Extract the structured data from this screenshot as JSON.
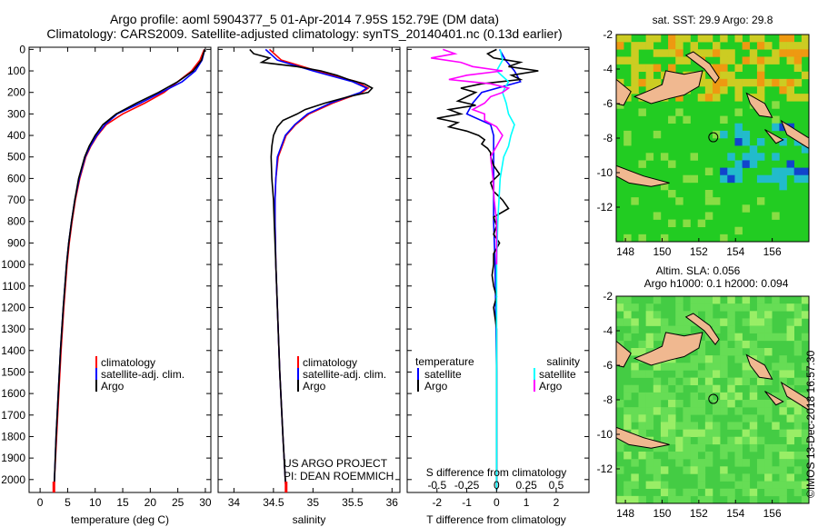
{
  "header": {
    "line1": "Argo profile: aoml 5904377_5 01-Apr-2014 7.95S 152.79E (DM data)",
    "line2": "Climatology: CARS2009. Satellite-adjusted climatology: synTS_20140401.nc (0.13d earlier)"
  },
  "colors": {
    "climatology": "#ff0000",
    "satellite": "#0000ff",
    "argo": "#000000",
    "satellite_s": "#00ffff",
    "argo_s": "#ff00ff",
    "land": "#f0b890",
    "sst_sea": "#22cc22",
    "sla_sea": "#44cc44"
  },
  "depth_axis": {
    "ticks": [
      "0",
      "100",
      "200",
      "300",
      "400",
      "500",
      "600",
      "700",
      "800",
      "900",
      "1000",
      "1100",
      "1200",
      "1300",
      "1400",
      "1500",
      "1600",
      "1700",
      "1800",
      "1900",
      "2000"
    ]
  },
  "chart_data": [
    {
      "type": "line",
      "panel": "temperature",
      "xlabel": "temperature (deg C)",
      "xlim": [
        -2,
        31
      ],
      "ylim": [
        2060,
        -10
      ],
      "xticks": [
        "0",
        "5",
        "10",
        "15",
        "20",
        "25",
        "30"
      ],
      "legend": [
        "climatology",
        "satellite-adj. clim.",
        "Argo"
      ],
      "series": [
        {
          "name": "climatology",
          "depth": [
            0,
            50,
            100,
            150,
            200,
            250,
            300,
            350,
            400,
            450,
            500,
            600,
            700,
            800,
            900,
            1000,
            1200,
            1400,
            1600,
            1800,
            2000,
            2050
          ],
          "values": [
            29.8,
            29.0,
            27.5,
            25.0,
            22.5,
            19.0,
            15.0,
            12.0,
            10.4,
            9.2,
            8.3,
            7.2,
            6.4,
            5.8,
            5.3,
            4.9,
            4.3,
            3.8,
            3.4,
            3.0,
            2.6,
            2.5
          ]
        },
        {
          "name": "satellite-adj. clim.",
          "depth": [
            0,
            50,
            100,
            150,
            200,
            250,
            300,
            350,
            400,
            450,
            500,
            600,
            700,
            800,
            900,
            1000,
            1200,
            1400,
            1600,
            1800,
            2000,
            2050
          ],
          "values": [
            29.9,
            29.4,
            28.2,
            25.8,
            22.0,
            18.2,
            14.0,
            11.8,
            10.3,
            9.1,
            8.2,
            7.1,
            6.3,
            5.7,
            5.2,
            4.8,
            4.2,
            3.7,
            3.3,
            2.9,
            2.6,
            2.5
          ]
        },
        {
          "name": "Argo",
          "depth": [
            0,
            50,
            100,
            150,
            200,
            250,
            300,
            350,
            400,
            450,
            500,
            600,
            700,
            800,
            900,
            1000,
            1200,
            1400,
            1600,
            1800,
            2000,
            2050
          ],
          "values": [
            29.9,
            29.3,
            27.8,
            25.0,
            21.5,
            17.5,
            13.8,
            11.4,
            10.0,
            8.9,
            8.1,
            7.0,
            6.3,
            5.7,
            5.2,
            4.8,
            4.2,
            3.7,
            3.3,
            2.9,
            2.6,
            2.5
          ]
        }
      ]
    },
    {
      "type": "line",
      "panel": "salinity",
      "xlabel": "salinity",
      "xlim": [
        33.8,
        36.1
      ],
      "ylim": [
        2060,
        -10
      ],
      "xticks": [
        "34",
        "34.5",
        "35",
        "35.5",
        "36"
      ],
      "legend": [
        "climatology",
        "satellite-adj. clim.",
        "Argo"
      ],
      "annotation": [
        "US ARGO PROJECT",
        "PI: DEAN ROEMMICH"
      ],
      "series": [
        {
          "name": "climatology",
          "depth": [
            0,
            50,
            100,
            150,
            180,
            200,
            250,
            300,
            350,
            400,
            500,
            600,
            700,
            800,
            1000,
            1200,
            1500,
            1800,
            2000,
            2050
          ],
          "values": [
            34.45,
            34.6,
            35.05,
            35.55,
            35.7,
            35.62,
            35.25,
            34.95,
            34.78,
            34.66,
            34.56,
            34.53,
            34.52,
            34.52,
            34.53,
            34.55,
            34.58,
            34.62,
            34.65,
            34.66
          ]
        },
        {
          "name": "satellite-adj. clim.",
          "depth": [
            0,
            50,
            100,
            150,
            180,
            200,
            250,
            300,
            350,
            400,
            500,
            600,
            700,
            800,
            1000,
            1200,
            1500,
            1800,
            2000,
            2050
          ],
          "values": [
            34.4,
            34.55,
            35.0,
            35.5,
            35.68,
            35.6,
            35.22,
            34.93,
            34.77,
            34.65,
            34.55,
            34.53,
            34.52,
            34.52,
            34.53,
            34.55,
            34.58,
            34.62,
            34.65,
            34.66
          ]
        },
        {
          "name": "Argo",
          "depth": [
            0,
            20,
            40,
            60,
            80,
            100,
            120,
            140,
            160,
            180,
            200,
            220,
            250,
            280,
            300,
            330,
            360,
            400,
            450,
            500,
            600,
            700,
            800,
            1000,
            1200,
            1500,
            1800,
            2000,
            2050
          ],
          "values": [
            34.2,
            34.25,
            34.45,
            34.35,
            34.8,
            35.1,
            35.3,
            35.45,
            35.65,
            35.75,
            35.7,
            35.45,
            35.15,
            34.9,
            34.8,
            34.62,
            34.55,
            34.5,
            34.48,
            34.47,
            34.48,
            34.5,
            34.51,
            34.53,
            34.55,
            34.58,
            34.62,
            34.65,
            34.66
          ]
        }
      ]
    },
    {
      "type": "line",
      "panel": "differences",
      "xlabel": "T difference from climatology",
      "xlabel_top": "S difference from climatology",
      "xlim": [
        -3,
        3.1
      ],
      "ylim": [
        2060,
        -10
      ],
      "xticks": [
        "-2",
        "-1",
        "0",
        "1",
        "2"
      ],
      "xticks_s": [
        "-0.5",
        "-0.25",
        "0",
        "0.25",
        "0.5"
      ],
      "legend_t": {
        "title": "temperature",
        "items": [
          "satellite",
          "Argo"
        ]
      },
      "legend_s": {
        "title": "salinity",
        "items": [
          "satellite",
          "Argo"
        ]
      },
      "series": [
        {
          "name": "satellite",
          "group": "temperature",
          "depth": [
            0,
            50,
            100,
            150,
            200,
            250,
            300,
            350,
            400,
            500,
            600,
            800,
            1000,
            1500,
            2000,
            2050
          ],
          "values": [
            0.1,
            0.3,
            0.6,
            0.8,
            -0.5,
            -0.8,
            -1.0,
            -0.2,
            -0.1,
            -0.1,
            -0.1,
            -0.1,
            -0.05,
            0,
            0,
            0
          ]
        },
        {
          "name": "Argo",
          "group": "temperature",
          "depth": [
            0,
            20,
            40,
            60,
            80,
            100,
            120,
            140,
            160,
            180,
            200,
            220,
            240,
            260,
            280,
            300,
            320,
            340,
            360,
            380,
            400,
            420,
            440,
            460,
            480,
            500,
            540,
            580,
            620,
            660,
            700,
            740,
            780,
            820,
            860,
            900,
            950,
            1000,
            1050,
            1100,
            1150,
            1200,
            1300,
            1400,
            1500,
            1600,
            1800,
            2000,
            2050
          ],
          "values": [
            0,
            -0.3,
            -0.1,
            0.8,
            0.4,
            1.4,
            0.5,
            0.8,
            -0.5,
            -1.2,
            -0.7,
            -1.0,
            -1.3,
            -0.7,
            -1.6,
            -1.2,
            -2.0,
            -1.3,
            -1.6,
            -1.0,
            -0.6,
            -0.4,
            -0.5,
            -0.3,
            -0.2,
            -0.2,
            -0.1,
            0.1,
            -0.2,
            -0.1,
            0.2,
            0.4,
            -0.1,
            0,
            -0.1,
            0.1,
            -0.1,
            -0.1,
            -0.15,
            -0.1,
            0,
            -0.1,
            0,
            0,
            0,
            0,
            0,
            0,
            0
          ]
        },
        {
          "name": "satellite",
          "group": "salinity",
          "depth": [
            0,
            50,
            100,
            150,
            200,
            250,
            300,
            350,
            400,
            450,
            500,
            600,
            700,
            800,
            1000,
            1200,
            1500,
            1800,
            2000,
            2050
          ],
          "values": [
            0.03,
            0.05,
            0.0,
            0.1,
            0.05,
            0.08,
            0.1,
            0.15,
            0.12,
            0.1,
            0.06,
            0.03,
            0.02,
            0.01,
            0.0,
            0.0,
            0.0,
            0.0,
            0.0,
            0.0
          ]
        },
        {
          "name": "Argo",
          "group": "salinity",
          "depth": [
            0,
            20,
            40,
            60,
            80,
            100,
            120,
            140,
            160,
            180,
            200,
            220,
            250,
            280,
            300,
            330,
            360,
            400,
            450,
            500,
            600,
            700,
            800,
            1000
          ],
          "values": [
            -0.45,
            -0.35,
            -0.55,
            -0.3,
            -0.2,
            0.05,
            -0.25,
            -0.4,
            -0.05,
            0.1,
            0.05,
            -0.05,
            -0.1,
            -0.2,
            -0.1,
            -0.1,
            0.0,
            0.05,
            0.0,
            -0.05,
            -0.03,
            -0.02,
            0.0,
            0.0
          ]
        }
      ]
    },
    {
      "type": "heatmap",
      "panel": "sst_map",
      "title": "sat. SST: 29.9 Argo: 29.8",
      "xlim": [
        147.5,
        158
      ],
      "ylim": [
        -14,
        -2
      ],
      "xticks": [
        "148",
        "150",
        "152",
        "154",
        "156"
      ],
      "yticks": [
        "-2",
        "-4",
        "-6",
        "-8",
        "-10",
        "-12"
      ],
      "marker": {
        "lon": 152.79,
        "lat": -7.95
      }
    },
    {
      "type": "heatmap",
      "panel": "sla_map",
      "title_line1": "Altim. SLA: 0.056",
      "title_line2": "Argo h1000: 0.1 h2000: 0.094",
      "xlim": [
        147.5,
        158
      ],
      "ylim": [
        -14,
        -2
      ],
      "xticks": [
        "148",
        "150",
        "152",
        "154",
        "156"
      ],
      "yticks": [
        "-2",
        "-4",
        "-6",
        "-8",
        "-10",
        "-12"
      ],
      "marker": {
        "lon": 152.79,
        "lat": -7.95
      }
    }
  ],
  "watermark": "©IMOS 13-Dec-2018 16:57:30"
}
